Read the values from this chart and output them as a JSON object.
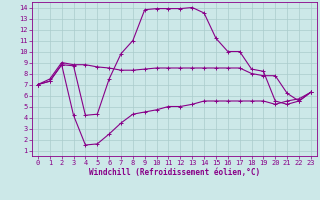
{
  "xlabel": "Windchill (Refroidissement éolien,°C)",
  "bg_color": "#cce8e8",
  "line_color": "#880088",
  "xlim": [
    -0.5,
    23.5
  ],
  "ylim": [
    0.5,
    14.5
  ],
  "xticks": [
    0,
    1,
    2,
    3,
    4,
    5,
    6,
    7,
    8,
    9,
    10,
    11,
    12,
    13,
    14,
    15,
    16,
    17,
    18,
    19,
    20,
    21,
    22,
    23
  ],
  "yticks": [
    1,
    2,
    3,
    4,
    5,
    6,
    7,
    8,
    9,
    10,
    11,
    12,
    13,
    14
  ],
  "line1_x": [
    0,
    1,
    2,
    3,
    4,
    5,
    6,
    7,
    8,
    9,
    10,
    11,
    12,
    13,
    14,
    15,
    16,
    17,
    18,
    19,
    20,
    21,
    22,
    23
  ],
  "line1_y": [
    7.0,
    7.5,
    9.0,
    8.8,
    8.8,
    8.6,
    8.5,
    8.3,
    8.3,
    8.4,
    8.5,
    8.5,
    8.5,
    8.5,
    8.5,
    8.5,
    8.5,
    8.5,
    8.0,
    7.8,
    7.8,
    6.2,
    5.5,
    6.3
  ],
  "line2_x": [
    0,
    1,
    2,
    3,
    4,
    5,
    6,
    7,
    8,
    9,
    10,
    11,
    12,
    13,
    14,
    15,
    16,
    17,
    18,
    19,
    20,
    21,
    22,
    23
  ],
  "line2_y": [
    7.0,
    7.3,
    8.8,
    8.7,
    4.2,
    4.3,
    7.5,
    9.8,
    11.0,
    13.8,
    13.9,
    13.9,
    13.9,
    14.0,
    13.5,
    11.2,
    10.0,
    10.0,
    8.4,
    8.2,
    5.5,
    5.2,
    5.5,
    6.3
  ],
  "line3_x": [
    0,
    1,
    2,
    3,
    4,
    5,
    6,
    7,
    8,
    9,
    10,
    11,
    12,
    13,
    14,
    15,
    16,
    17,
    18,
    19,
    20,
    21,
    22,
    23
  ],
  "line3_y": [
    7.0,
    7.3,
    8.8,
    4.2,
    1.5,
    1.6,
    2.5,
    3.5,
    4.3,
    4.5,
    4.7,
    5.0,
    5.0,
    5.2,
    5.5,
    5.5,
    5.5,
    5.5,
    5.5,
    5.5,
    5.2,
    5.5,
    5.7,
    6.3
  ],
  "grid_color": "#aacccc",
  "markersize": 3,
  "linewidth": 0.8,
  "tick_fontsize": 5.0,
  "xlabel_fontsize": 5.5
}
